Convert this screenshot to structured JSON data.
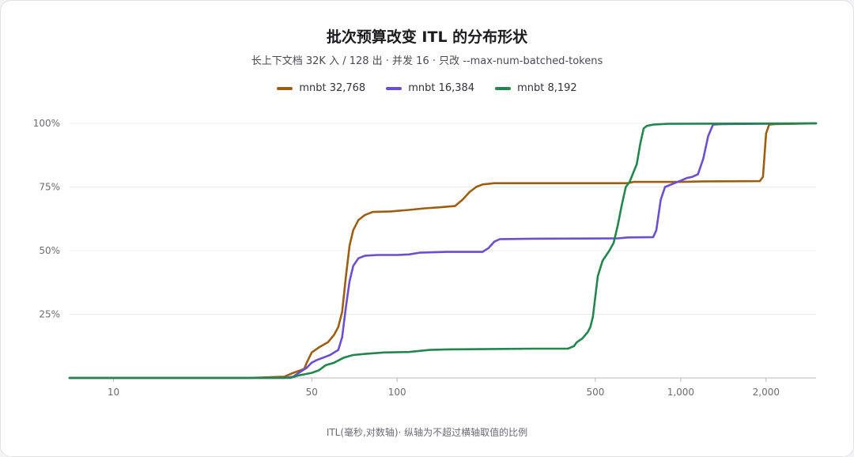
{
  "title": "批次预算改变 ITL 的分布形状",
  "subtitle": "长上下文档 32K 入 / 128 出 · 并发 16 · 只改 --max-num-batched-tokens",
  "footer": "ITL(毫秒,对数轴)· 纵轴为不超过横轴取值的比例",
  "chart_data": {
    "type": "line",
    "x_scale": "log",
    "xlim": [
      7,
      3000
    ],
    "ylim": [
      0,
      100
    ],
    "x_ticks": [
      10,
      50,
      100,
      500,
      1000,
      2000
    ],
    "x_tick_labels": [
      "10",
      "50",
      "100",
      "500",
      "1,000",
      "2,000"
    ],
    "y_ticks": [
      25,
      50,
      75,
      100
    ],
    "y_tick_labels": [
      "25%",
      "50%",
      "75%",
      "100%"
    ],
    "grid": "horizontal",
    "legend_position": "top-center",
    "series": [
      {
        "name": "mnbt 32,768",
        "color": "#9c5f12",
        "points": [
          [
            7,
            0
          ],
          [
            30,
            0
          ],
          [
            40,
            0.5
          ],
          [
            43,
            2
          ],
          [
            47,
            3.5
          ],
          [
            48,
            6
          ],
          [
            50,
            10
          ],
          [
            53,
            12
          ],
          [
            57,
            14
          ],
          [
            60,
            17
          ],
          [
            62,
            20
          ],
          [
            64,
            26
          ],
          [
            66,
            40
          ],
          [
            68,
            52
          ],
          [
            70,
            58
          ],
          [
            73,
            62
          ],
          [
            77,
            64
          ],
          [
            82,
            65.2
          ],
          [
            95,
            65.4
          ],
          [
            110,
            66
          ],
          [
            125,
            66.6
          ],
          [
            140,
            67
          ],
          [
            160,
            67.5
          ],
          [
            170,
            70
          ],
          [
            180,
            73
          ],
          [
            190,
            75
          ],
          [
            200,
            76
          ],
          [
            220,
            76.5
          ],
          [
            400,
            76.5
          ],
          [
            650,
            76.5
          ],
          [
            680,
            77
          ],
          [
            1000,
            77
          ],
          [
            1200,
            77.2
          ],
          [
            1900,
            77.3
          ],
          [
            1950,
            79
          ],
          [
            2000,
            96
          ],
          [
            2050,
            99.5
          ],
          [
            2150,
            99.7
          ],
          [
            3000,
            100
          ]
        ]
      },
      {
        "name": "mnbt 16,384",
        "color": "#6a4fcf",
        "points": [
          [
            7,
            0
          ],
          [
            40,
            0
          ],
          [
            43,
            0.5
          ],
          [
            45,
            2
          ],
          [
            48,
            4
          ],
          [
            50,
            6
          ],
          [
            52,
            7
          ],
          [
            55,
            8
          ],
          [
            58,
            9
          ],
          [
            62,
            11
          ],
          [
            64,
            16
          ],
          [
            66,
            28
          ],
          [
            68,
            38
          ],
          [
            70,
            44
          ],
          [
            73,
            47
          ],
          [
            77,
            48
          ],
          [
            85,
            48.3
          ],
          [
            100,
            48.3
          ],
          [
            110,
            48.5
          ],
          [
            120,
            49.2
          ],
          [
            150,
            49.5
          ],
          [
            200,
            49.5
          ],
          [
            210,
            51
          ],
          [
            220,
            53.5
          ],
          [
            230,
            54.5
          ],
          [
            300,
            54.7
          ],
          [
            600,
            54.8
          ],
          [
            650,
            55.2
          ],
          [
            800,
            55.3
          ],
          [
            820,
            58
          ],
          [
            850,
            70
          ],
          [
            880,
            75
          ],
          [
            950,
            76.5
          ],
          [
            1000,
            77.5
          ],
          [
            1050,
            78.5
          ],
          [
            1100,
            79
          ],
          [
            1150,
            80
          ],
          [
            1200,
            86
          ],
          [
            1250,
            95
          ],
          [
            1300,
            99.5
          ],
          [
            1400,
            99.7
          ],
          [
            3000,
            100
          ]
        ]
      },
      {
        "name": "mnbt 8,192",
        "color": "#22864e",
        "points": [
          [
            7,
            0
          ],
          [
            42,
            0
          ],
          [
            45,
            1
          ],
          [
            50,
            2
          ],
          [
            53,
            3
          ],
          [
            56,
            5
          ],
          [
            60,
            6
          ],
          [
            65,
            8
          ],
          [
            70,
            9
          ],
          [
            78,
            9.5
          ],
          [
            90,
            10
          ],
          [
            110,
            10.2
          ],
          [
            130,
            11
          ],
          [
            150,
            11.2
          ],
          [
            300,
            11.5
          ],
          [
            400,
            11.5
          ],
          [
            420,
            12.5
          ],
          [
            430,
            14
          ],
          [
            450,
            15.5
          ],
          [
            470,
            18
          ],
          [
            480,
            20
          ],
          [
            490,
            24
          ],
          [
            500,
            32
          ],
          [
            510,
            40
          ],
          [
            530,
            46
          ],
          [
            560,
            50
          ],
          [
            580,
            53
          ],
          [
            600,
            60
          ],
          [
            620,
            68
          ],
          [
            640,
            75
          ],
          [
            660,
            77
          ],
          [
            700,
            84
          ],
          [
            720,
            92
          ],
          [
            740,
            98
          ],
          [
            760,
            99
          ],
          [
            800,
            99.5
          ],
          [
            900,
            99.8
          ],
          [
            3000,
            100
          ]
        ]
      }
    ]
  }
}
